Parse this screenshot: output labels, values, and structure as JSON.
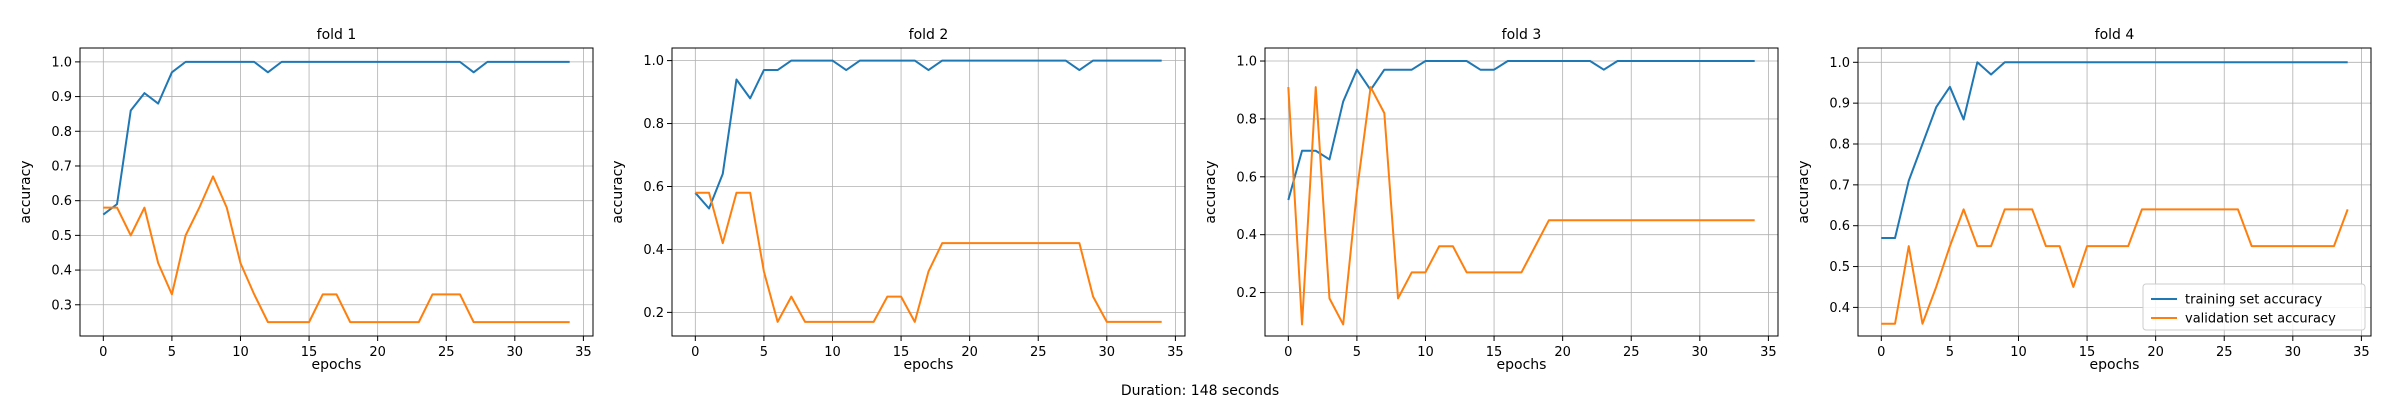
{
  "figure": {
    "caption": "Duration: 148 seconds"
  },
  "colors": {
    "training": "#1f77b4",
    "validation": "#ff7f0e",
    "grid": "#b0b0b0"
  },
  "legend": {
    "placement": "lower-right",
    "entries": [
      "training set accuracy",
      "validation set accuracy"
    ]
  },
  "chart_data": [
    {
      "type": "line",
      "title": "fold 1",
      "xlabel": "epochs",
      "ylabel": "accuracy",
      "grid": true,
      "xlim": [
        -1.7,
        35.7
      ],
      "ylim": [
        0.21,
        1.04
      ],
      "xticks": [
        0,
        5,
        10,
        15,
        20,
        25,
        30,
        35
      ],
      "yticks": [
        0.3,
        0.4,
        0.5,
        0.6,
        0.7,
        0.8,
        0.9,
        1.0
      ],
      "x": [
        0,
        1,
        2,
        3,
        4,
        5,
        6,
        7,
        8,
        9,
        10,
        11,
        12,
        13,
        14,
        15,
        16,
        17,
        18,
        19,
        20,
        21,
        22,
        23,
        24,
        25,
        26,
        27,
        28,
        29,
        30,
        31,
        32,
        33,
        34
      ],
      "series": [
        {
          "name": "training set accuracy",
          "values": [
            0.56,
            0.59,
            0.86,
            0.91,
            0.88,
            0.97,
            1.0,
            1.0,
            1.0,
            1.0,
            1.0,
            1.0,
            0.97,
            1.0,
            1.0,
            1.0,
            1.0,
            1.0,
            1.0,
            1.0,
            1.0,
            1.0,
            1.0,
            1.0,
            1.0,
            1.0,
            1.0,
            0.97,
            1.0,
            1.0,
            1.0,
            1.0,
            1.0,
            1.0,
            1.0
          ]
        },
        {
          "name": "validation set accuracy",
          "values": [
            0.58,
            0.58,
            0.5,
            0.58,
            0.42,
            0.33,
            0.5,
            0.58,
            0.67,
            0.58,
            0.42,
            0.33,
            0.25,
            0.25,
            0.25,
            0.25,
            0.33,
            0.33,
            0.25,
            0.25,
            0.25,
            0.25,
            0.25,
            0.25,
            0.33,
            0.33,
            0.33,
            0.25,
            0.25,
            0.25,
            0.25,
            0.25,
            0.25,
            0.25,
            0.25
          ]
        }
      ]
    },
    {
      "type": "line",
      "title": "fold 2",
      "xlabel": "epochs",
      "ylabel": "accuracy",
      "grid": true,
      "xlim": [
        -1.7,
        35.7
      ],
      "ylim": [
        0.125,
        1.04
      ],
      "xticks": [
        0,
        5,
        10,
        15,
        20,
        25,
        30,
        35
      ],
      "yticks": [
        0.2,
        0.4,
        0.6,
        0.8,
        1.0
      ],
      "x": [
        0,
        1,
        2,
        3,
        4,
        5,
        6,
        7,
        8,
        9,
        10,
        11,
        12,
        13,
        14,
        15,
        16,
        17,
        18,
        19,
        20,
        21,
        22,
        23,
        24,
        25,
        26,
        27,
        28,
        29,
        30,
        31,
        32,
        33,
        34
      ],
      "series": [
        {
          "name": "training set accuracy",
          "values": [
            0.58,
            0.53,
            0.64,
            0.94,
            0.88,
            0.97,
            0.97,
            1.0,
            1.0,
            1.0,
            1.0,
            0.97,
            1.0,
            1.0,
            1.0,
            1.0,
            1.0,
            0.97,
            1.0,
            1.0,
            1.0,
            1.0,
            1.0,
            1.0,
            1.0,
            1.0,
            1.0,
            1.0,
            0.97,
            1.0,
            1.0,
            1.0,
            1.0,
            1.0,
            1.0
          ]
        },
        {
          "name": "validation set accuracy",
          "values": [
            0.58,
            0.58,
            0.42,
            0.58,
            0.58,
            0.33,
            0.17,
            0.25,
            0.17,
            0.17,
            0.17,
            0.17,
            0.17,
            0.17,
            0.25,
            0.25,
            0.17,
            0.33,
            0.42,
            0.42,
            0.42,
            0.42,
            0.42,
            0.42,
            0.42,
            0.42,
            0.42,
            0.42,
            0.42,
            0.25,
            0.17,
            0.17,
            0.17,
            0.17,
            0.17
          ]
        }
      ]
    },
    {
      "type": "line",
      "title": "fold 3",
      "xlabel": "epochs",
      "ylabel": "accuracy",
      "grid": true,
      "xlim": [
        -1.7,
        35.7
      ],
      "ylim": [
        0.05,
        1.045
      ],
      "xticks": [
        0,
        5,
        10,
        15,
        20,
        25,
        30,
        35
      ],
      "yticks": [
        0.2,
        0.4,
        0.6,
        0.8,
        1.0
      ],
      "x": [
        0,
        1,
        2,
        3,
        4,
        5,
        6,
        7,
        8,
        9,
        10,
        11,
        12,
        13,
        14,
        15,
        16,
        17,
        18,
        19,
        20,
        21,
        22,
        23,
        24,
        25,
        26,
        27,
        28,
        29,
        30,
        31,
        32,
        33,
        34
      ],
      "series": [
        {
          "name": "training set accuracy",
          "values": [
            0.52,
            0.69,
            0.69,
            0.66,
            0.86,
            0.97,
            0.9,
            0.97,
            0.97,
            0.97,
            1.0,
            1.0,
            1.0,
            1.0,
            0.97,
            0.97,
            1.0,
            1.0,
            1.0,
            1.0,
            1.0,
            1.0,
            1.0,
            0.97,
            1.0,
            1.0,
            1.0,
            1.0,
            1.0,
            1.0,
            1.0,
            1.0,
            1.0,
            1.0,
            1.0
          ]
        },
        {
          "name": "validation set accuracy",
          "values": [
            0.91,
            0.09,
            0.91,
            0.18,
            0.09,
            0.55,
            0.91,
            0.82,
            0.18,
            0.27,
            0.27,
            0.36,
            0.36,
            0.27,
            0.27,
            0.27,
            0.27,
            0.27,
            0.36,
            0.45,
            0.45,
            0.45,
            0.45,
            0.45,
            0.45,
            0.45,
            0.45,
            0.45,
            0.45,
            0.45,
            0.45,
            0.45,
            0.45,
            0.45,
            0.45
          ]
        }
      ]
    },
    {
      "type": "line",
      "title": "fold 4",
      "xlabel": "epochs",
      "ylabel": "accuracy",
      "grid": true,
      "xlim": [
        -1.7,
        35.7
      ],
      "ylim": [
        0.33,
        1.035
      ],
      "xticks": [
        0,
        5,
        10,
        15,
        20,
        25,
        30,
        35
      ],
      "yticks": [
        0.4,
        0.5,
        0.6,
        0.7,
        0.8,
        0.9,
        1.0
      ],
      "x": [
        0,
        1,
        2,
        3,
        4,
        5,
        6,
        7,
        8,
        9,
        10,
        11,
        12,
        13,
        14,
        15,
        16,
        17,
        18,
        19,
        20,
        21,
        22,
        23,
        24,
        25,
        26,
        27,
        28,
        29,
        30,
        31,
        32,
        33,
        34
      ],
      "series": [
        {
          "name": "training set accuracy",
          "values": [
            0.57,
            0.57,
            0.71,
            0.8,
            0.89,
            0.94,
            0.86,
            1.0,
            0.97,
            1.0,
            1.0,
            1.0,
            1.0,
            1.0,
            1.0,
            1.0,
            1.0,
            1.0,
            1.0,
            1.0,
            1.0,
            1.0,
            1.0,
            1.0,
            1.0,
            1.0,
            1.0,
            1.0,
            1.0,
            1.0,
            1.0,
            1.0,
            1.0,
            1.0,
            1.0
          ]
        },
        {
          "name": "validation set accuracy",
          "values": [
            0.36,
            0.36,
            0.55,
            0.36,
            0.45,
            0.55,
            0.64,
            0.55,
            0.55,
            0.64,
            0.64,
            0.64,
            0.55,
            0.55,
            0.45,
            0.55,
            0.55,
            0.55,
            0.55,
            0.64,
            0.64,
            0.64,
            0.64,
            0.64,
            0.64,
            0.64,
            0.64,
            0.55,
            0.55,
            0.55,
            0.55,
            0.55,
            0.55,
            0.55,
            0.64
          ]
        }
      ]
    }
  ]
}
